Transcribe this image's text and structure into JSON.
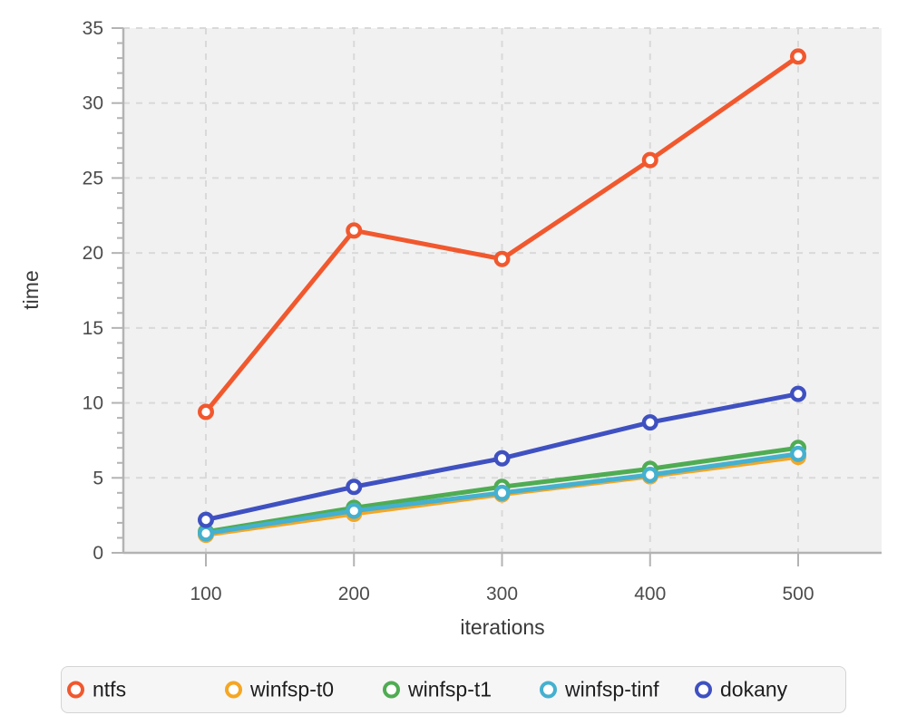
{
  "chart_data": {
    "type": "line",
    "title": "",
    "xlabel": "iterations",
    "ylabel": "time",
    "x": [
      100,
      200,
      300,
      400,
      500
    ],
    "xticks": [
      100,
      200,
      300,
      400,
      500
    ],
    "yticks": [
      0,
      5,
      10,
      15,
      20,
      25,
      30,
      35
    ],
    "y_minor_tick_step": 1,
    "xlim_ticks": [
      100,
      500
    ],
    "ylim": [
      0,
      35
    ],
    "grid": true,
    "grid_style": "dashed",
    "legend_position": "bottom",
    "series": [
      {
        "name": "ntfs",
        "color": "#F1582E",
        "values": [
          9.4,
          21.5,
          19.6,
          26.2,
          33.1
        ]
      },
      {
        "name": "winfsp-t0",
        "color": "#F5A623",
        "values": [
          1.2,
          2.6,
          3.9,
          5.1,
          6.4
        ]
      },
      {
        "name": "winfsp-t1",
        "color": "#4FAC53",
        "values": [
          1.4,
          3.0,
          4.4,
          5.6,
          7.0
        ]
      },
      {
        "name": "winfsp-tinf",
        "color": "#45B0CF",
        "values": [
          1.3,
          2.8,
          4.0,
          5.2,
          6.6
        ]
      },
      {
        "name": "dokany",
        "color": "#3F51C1",
        "values": [
          2.2,
          4.4,
          6.3,
          8.7,
          10.6
        ]
      }
    ]
  },
  "colors": {
    "plot_bg": "#f1f1f1",
    "grid": "#d9d9d9",
    "axis": "#b3b3b3",
    "tick_label": "#4c4c4c",
    "axis_title": "#3a3a3a",
    "legend_bg": "#f6f6f6",
    "legend_border": "#d4d4d4",
    "legend_text": "#1d1d1f"
  }
}
